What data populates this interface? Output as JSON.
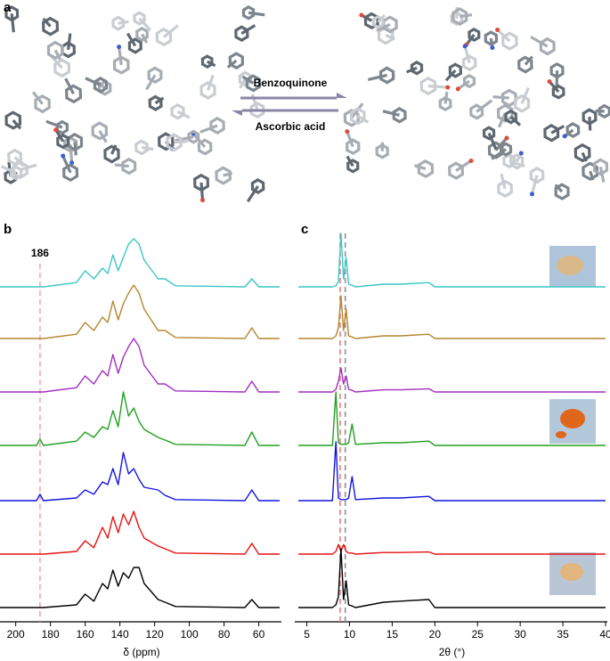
{
  "panel_a": {
    "panel_label": "a",
    "forward": "Benzoquinone",
    "reverse": "Ascorbic acid"
  },
  "chart_data": [
    {
      "type": "line",
      "panel_label": "b",
      "xlabel": "δ (ppm)",
      "xlim": [
        207,
        48
      ],
      "xticks": [
        200,
        180,
        160,
        140,
        120,
        100,
        80,
        60
      ],
      "marker_lines": [
        {
          "value": 186,
          "color": "#f4a6b0"
        }
      ],
      "x": [
        210,
        188,
        186,
        184,
        165,
        160,
        155,
        150,
        147,
        144,
        141,
        138,
        135,
        132,
        129,
        126,
        118,
        114,
        108,
        68,
        64,
        60,
        48
      ],
      "series": [
        {
          "color": "#3cc6c6",
          "values": [
            0,
            0,
            0,
            0,
            0.08,
            0.3,
            0.15,
            0.35,
            0.25,
            0.6,
            0.3,
            0.55,
            0.8,
            0.9,
            0.8,
            0.5,
            0.15,
            0.15,
            0.02,
            0,
            0.15,
            0,
            0
          ]
        },
        {
          "color": "#b5862e",
          "values": [
            0,
            0,
            0,
            0,
            0.08,
            0.3,
            0.15,
            0.4,
            0.3,
            0.7,
            0.35,
            0.65,
            0.85,
            1.0,
            0.85,
            0.55,
            0.15,
            0.15,
            0.02,
            0,
            0.2,
            0,
            0
          ]
        },
        {
          "color": "#a12fc0",
          "values": [
            0,
            0,
            0,
            0,
            0.08,
            0.3,
            0.15,
            0.4,
            0.3,
            0.7,
            0.35,
            0.65,
            0.85,
            1.0,
            0.85,
            0.5,
            0.15,
            0.15,
            0.02,
            0,
            0.2,
            0,
            0
          ]
        },
        {
          "color": "#21a021",
          "values": [
            0,
            0,
            0.12,
            0,
            0.08,
            0.25,
            0.15,
            0.35,
            0.3,
            0.65,
            0.35,
            1.0,
            0.55,
            0.7,
            0.45,
            0.3,
            0.15,
            0.1,
            0.02,
            0,
            0.25,
            0,
            0
          ]
        },
        {
          "color": "#1414e0",
          "values": [
            0,
            0,
            0.12,
            0,
            0.05,
            0.2,
            0.12,
            0.35,
            0.3,
            0.6,
            0.3,
            0.9,
            0.5,
            0.6,
            0.4,
            0.25,
            0.2,
            0.1,
            0.02,
            0,
            0.2,
            0,
            0
          ]
        },
        {
          "color": "#e81212",
          "values": [
            0,
            0,
            0,
            0,
            0.05,
            0.25,
            0.12,
            0.5,
            0.3,
            0.7,
            0.4,
            0.75,
            0.55,
            0.8,
            0.5,
            0.3,
            0.15,
            0.1,
            0.02,
            0,
            0.2,
            0,
            0
          ]
        },
        {
          "color": "#000000",
          "values": [
            0,
            0,
            0,
            0,
            0.05,
            0.25,
            0.12,
            0.45,
            0.35,
            0.7,
            0.4,
            0.65,
            0.55,
            0.75,
            0.75,
            0.45,
            0.15,
            0.1,
            0.02,
            0,
            0.15,
            0,
            0
          ]
        }
      ]
    },
    {
      "type": "line",
      "panel_label": "c",
      "xlabel": "2θ (°)",
      "xlim": [
        4,
        40
      ],
      "xticks": [
        5,
        10,
        15,
        20,
        25,
        30,
        35,
        40
      ],
      "marker_lines": [
        {
          "value": 8.9,
          "color": "#e88080"
        },
        {
          "value": 9.5,
          "color": "#909090"
        }
      ],
      "x": [
        4,
        8.0,
        8.4,
        8.7,
        9.0,
        9.3,
        9.6,
        9.9,
        10.3,
        10.7,
        14,
        16,
        19.3,
        20,
        40
      ],
      "series": [
        {
          "color": "#3cc6c6",
          "values": [
            0,
            0,
            0.02,
            0.1,
            1.0,
            0.15,
            0.55,
            0.05,
            0.03,
            0,
            0.05,
            0.05,
            0.08,
            0,
            0
          ]
        },
        {
          "color": "#b5862e",
          "values": [
            0,
            0,
            0.05,
            0.2,
            0.8,
            0.15,
            0.55,
            0.05,
            0.03,
            0,
            0.05,
            0.05,
            0.08,
            0,
            0
          ]
        },
        {
          "color": "#a12fc0",
          "values": [
            0,
            0,
            0.05,
            0.2,
            0.45,
            0.15,
            0.3,
            0.05,
            0.03,
            0,
            0.04,
            0.04,
            0.06,
            0,
            0
          ]
        },
        {
          "color": "#21a021",
          "values": [
            0,
            0,
            1.0,
            0.05,
            0.02,
            0.02,
            0.02,
            0.05,
            0.4,
            0.02,
            0.05,
            0.05,
            0.08,
            0,
            0
          ]
        },
        {
          "color": "#1414e0",
          "values": [
            0,
            0,
            1.1,
            0.05,
            0.02,
            0.02,
            0.02,
            0.05,
            0.45,
            0.02,
            0.05,
            0.05,
            0.08,
            0,
            0
          ]
        },
        {
          "color": "#e81212",
          "values": [
            0,
            0,
            0.05,
            0.18,
            0.05,
            0.18,
            0.05,
            0.02,
            0.02,
            0,
            0.03,
            0.03,
            0.04,
            0,
            0
          ]
        },
        {
          "color": "#000000",
          "values": [
            0,
            0,
            0.05,
            0.2,
            1.1,
            0.15,
            0.5,
            0.05,
            0.03,
            0,
            0.1,
            0.12,
            0.15,
            0,
            0
          ]
        }
      ]
    }
  ]
}
